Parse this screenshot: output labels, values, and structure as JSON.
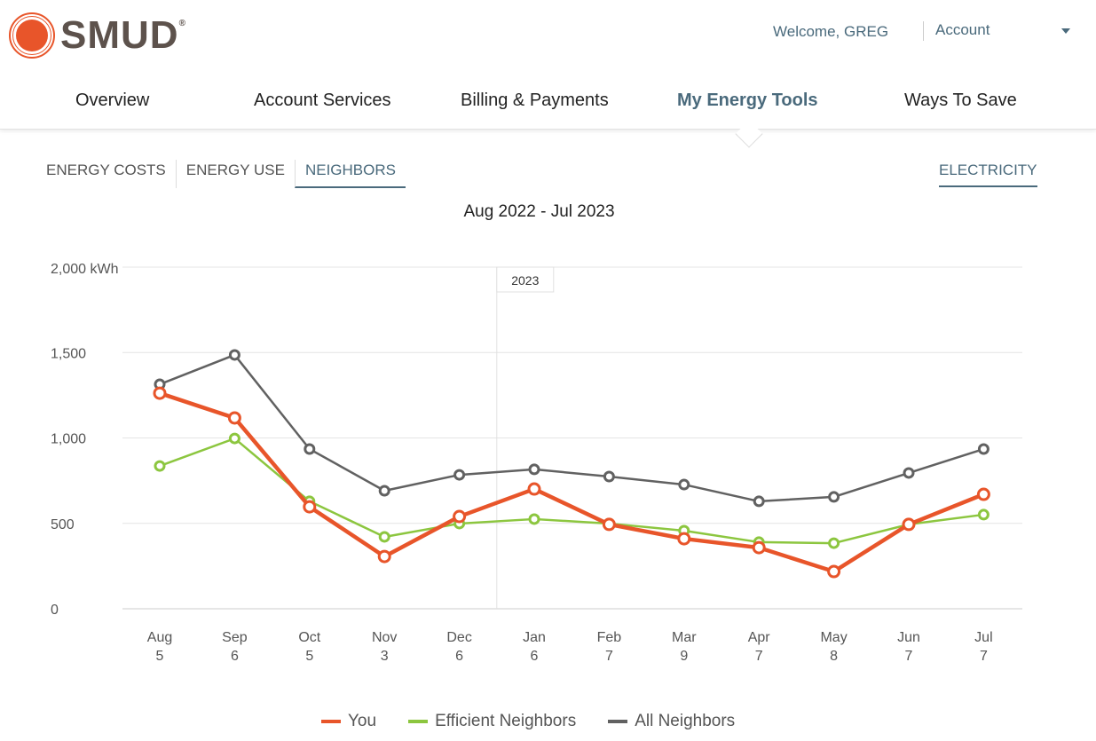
{
  "header": {
    "logo": "SMUD",
    "welcome": "Welcome, GREG",
    "account": "Account",
    "nav": [
      {
        "label": "Overview",
        "active": false
      },
      {
        "label": "Account Services",
        "active": false
      },
      {
        "label": "Billing & Payments",
        "active": false
      },
      {
        "label": "My Energy Tools",
        "active": true
      },
      {
        "label": "Ways To Save",
        "active": false
      }
    ]
  },
  "subtabs": [
    {
      "label": "ENERGY COSTS",
      "active": false
    },
    {
      "label": "ENERGY USE",
      "active": false
    },
    {
      "label": "NEIGHBORS",
      "active": true
    }
  ],
  "fuel": "ELECTRICITY",
  "range": "Aug 2022 - Jul 2023",
  "chart_data": {
    "type": "line",
    "title": "Aug 2022 - Jul 2023",
    "ylabel": "kWh",
    "ylim": [
      0,
      2000
    ],
    "yticks": [
      "0",
      "500",
      "1,000",
      "1,500",
      "2,000 kWh"
    ],
    "categories": [
      "Aug",
      "Sep",
      "Oct",
      "Nov",
      "Dec",
      "Jan",
      "Feb",
      "Mar",
      "Apr",
      "May",
      "Jun",
      "Jul"
    ],
    "days": [
      "5",
      "6",
      "5",
      "3",
      "6",
      "6",
      "7",
      "9",
      "7",
      "8",
      "7",
      "7"
    ],
    "year_marker": {
      "label": "2023",
      "at": "Jan"
    },
    "series": [
      {
        "name": "All Neighbors",
        "color": "#616161",
        "values": [
          1314,
          1486,
          935,
          691,
          784,
          816,
          774,
          727,
          629,
          655,
          795,
          935
        ]
      },
      {
        "name": "Efficient Neighbors",
        "color": "#8cc63f",
        "values": [
          836,
          997,
          629,
          421,
          499,
          525,
          499,
          457,
          390,
          384,
          494,
          551
        ]
      },
      {
        "name": "You",
        "color": "#e8552a",
        "values": [
          1262,
          1117,
          597,
          306,
          540,
          701,
          494,
          410,
          358,
          218,
          494,
          670
        ]
      }
    ],
    "legend": [
      "You",
      "Efficient Neighbors",
      "All Neighbors"
    ]
  }
}
